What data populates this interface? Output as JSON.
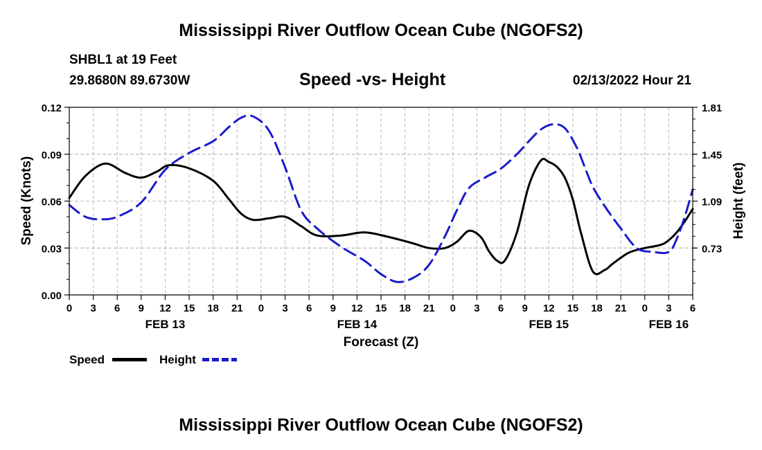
{
  "header": {
    "title": "Mississippi River Outflow Ocean Cube (NGOFS2)",
    "station": "SHBL1 at 19 Feet",
    "coords": "29.8680N  89.6730W",
    "subtitle": "Speed -vs- Height",
    "datetime": "02/13/2022 Hour 21"
  },
  "footer": {
    "title": "Mississippi River Outflow Ocean Cube (NGOFS2)"
  },
  "chart_data": {
    "type": "line",
    "xlabel": "Forecast (Z)",
    "ylabel": "Speed (Knots)",
    "y2label": "Height (feet)",
    "x_range": [
      0,
      78
    ],
    "ylim": [
      0,
      0.12
    ],
    "y2lim": [
      0.37,
      1.81
    ],
    "y_ticks": [
      0.0,
      0.03,
      0.06,
      0.09,
      0.12
    ],
    "y_tick_labels": [
      "0.00",
      "0.03",
      "0.06",
      "0.09",
      "0.12"
    ],
    "y2_ticks": [
      0.73,
      1.09,
      1.45,
      1.81
    ],
    "y2_tick_labels": [
      "0.73",
      "1.09",
      "1.45",
      "1.81"
    ],
    "x_tick_labels": [
      "0",
      "3",
      "6",
      "9",
      "12",
      "15",
      "18",
      "21",
      "0",
      "3",
      "6",
      "9",
      "12",
      "15",
      "18",
      "21",
      "0",
      "3",
      "6",
      "9",
      "12",
      "15",
      "18",
      "21",
      "0",
      "3",
      "6"
    ],
    "date_labels": [
      {
        "label": "FEB 13",
        "x": 12
      },
      {
        "label": "FEB 14",
        "x": 36
      },
      {
        "label": "FEB 15",
        "x": 60
      },
      {
        "label": "FEB 16",
        "x": 75
      }
    ],
    "grid": true,
    "legend_position": "bottom-left",
    "series": [
      {
        "name": "Speed",
        "axis": "left",
        "color": "#000000",
        "style": "solid",
        "x": [
          0,
          2,
          4.5,
          7,
          9,
          11,
          12.5,
          15,
          18,
          20,
          21.5,
          23,
          25,
          27,
          29,
          31,
          34,
          37,
          40,
          43,
          45,
          47,
          48.5,
          50,
          51.5,
          52.5,
          53.5,
          54.5,
          56,
          57.5,
          59,
          60,
          61,
          62,
          63,
          64,
          65.5,
          67,
          68,
          70,
          72,
          74,
          75,
          76,
          77,
          78
        ],
        "values": [
          0.062,
          0.076,
          0.084,
          0.078,
          0.075,
          0.079,
          0.083,
          0.081,
          0.073,
          0.061,
          0.052,
          0.048,
          0.049,
          0.05,
          0.044,
          0.038,
          0.038,
          0.04,
          0.037,
          0.033,
          0.03,
          0.03,
          0.034,
          0.041,
          0.037,
          0.028,
          0.022,
          0.022,
          0.04,
          0.07,
          0.086,
          0.085,
          0.082,
          0.075,
          0.061,
          0.04,
          0.015,
          0.016,
          0.02,
          0.027,
          0.03,
          0.032,
          0.035,
          0.04,
          0.047,
          0.055
        ]
      },
      {
        "name": "Height",
        "axis": "right",
        "color": "#1a1acc",
        "style": "dashed",
        "x": [
          0,
          2,
          4,
          6,
          9,
          12,
          15,
          18,
          20,
          21.5,
          23,
          25,
          27,
          29,
          31,
          34,
          37,
          39,
          41,
          43,
          45,
          47,
          48.5,
          50,
          52,
          54,
          56,
          57.5,
          59,
          60.5,
          62,
          63.5,
          64.5,
          65.5,
          67,
          69,
          71,
          73,
          75,
          76,
          77,
          78
        ],
        "values": [
          1.06,
          0.97,
          0.95,
          0.97,
          1.08,
          1.33,
          1.46,
          1.55,
          1.66,
          1.73,
          1.74,
          1.63,
          1.35,
          1.02,
          0.88,
          0.74,
          0.63,
          0.53,
          0.47,
          0.5,
          0.6,
          0.82,
          1.02,
          1.19,
          1.27,
          1.34,
          1.45,
          1.55,
          1.64,
          1.68,
          1.65,
          1.5,
          1.35,
          1.2,
          1.05,
          0.88,
          0.73,
          0.7,
          0.7,
          0.8,
          0.97,
          1.18
        ]
      }
    ]
  }
}
